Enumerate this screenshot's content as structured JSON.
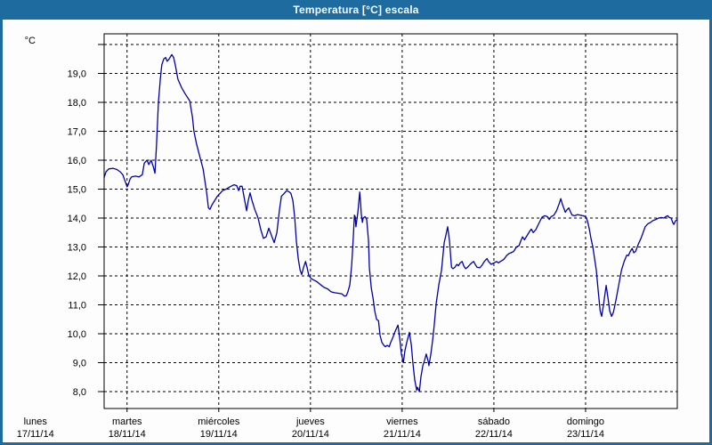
{
  "window": {
    "title": "Temperatura [°C] escala"
  },
  "colors": {
    "frame": "#1e6c9f",
    "title_text": "#ffffff",
    "line": "#0000aa",
    "grid": "#000000",
    "plot_bg": "#fdfdfd",
    "label_text": "#000000"
  },
  "chart_data": {
    "type": "line",
    "title": "Temperatura [°C] escala",
    "y_unit": "°C",
    "x_unit": "hours since lunes 17/11/14 00:00",
    "decimal_separator": ",",
    "grid": "dashed",
    "legend": "none",
    "y_ticks": [
      8,
      9,
      10,
      11,
      12,
      13,
      14,
      15,
      16,
      17,
      18,
      19
    ],
    "y_gridline_max": 20,
    "ylim": [
      7.4,
      20.4
    ],
    "xlim_hours": [
      18,
      168
    ],
    "x_days": [
      {
        "name": "lunes",
        "date": "17/11/14"
      },
      {
        "name": "martes",
        "date": "18/11/14"
      },
      {
        "name": "miércoles",
        "date": "19/11/14"
      },
      {
        "name": "jueves",
        "date": "20/11/14"
      },
      {
        "name": "viernes",
        "date": "21/11/14"
      },
      {
        "name": "sábado",
        "date": "22/11/14"
      },
      {
        "name": "domingo",
        "date": "23/11/14"
      }
    ],
    "series": [
      {
        "name": "Temperatura",
        "color": "#0000aa",
        "points": [
          [
            18,
            15.4
          ],
          [
            18.5,
            15.6
          ],
          [
            19.2,
            15.7
          ],
          [
            20.3,
            15.72
          ],
          [
            21.3,
            15.68
          ],
          [
            22.2,
            15.6
          ],
          [
            22.9,
            15.5
          ],
          [
            23.4,
            15.3
          ],
          [
            23.7,
            15.2
          ],
          [
            24,
            15.08
          ],
          [
            24.3,
            15.15
          ],
          [
            24.8,
            15.35
          ],
          [
            25.2,
            15.42
          ],
          [
            26.2,
            15.45
          ],
          [
            27.1,
            15.42
          ],
          [
            28,
            15.5
          ],
          [
            28.5,
            15.9
          ],
          [
            29.2,
            16.0
          ],
          [
            29.7,
            15.85
          ],
          [
            30.3,
            16.0
          ],
          [
            30.8,
            15.8
          ],
          [
            31.3,
            15.55
          ],
          [
            31.7,
            16.5
          ],
          [
            32.2,
            18.0
          ],
          [
            32.7,
            18.8
          ],
          [
            33.1,
            19.3
          ],
          [
            33.6,
            19.5
          ],
          [
            34.1,
            19.55
          ],
          [
            34.5,
            19.42
          ],
          [
            35,
            19.5
          ],
          [
            35.7,
            19.65
          ],
          [
            36.2,
            19.55
          ],
          [
            36.6,
            19.3
          ],
          [
            37.3,
            18.8
          ],
          [
            38.3,
            18.5
          ],
          [
            39.2,
            18.3
          ],
          [
            40.4,
            18.05
          ],
          [
            41.1,
            17.5
          ],
          [
            41.5,
            17.0
          ],
          [
            42.2,
            16.55
          ],
          [
            43.2,
            16.05
          ],
          [
            43.9,
            15.7
          ],
          [
            44.3,
            15.35
          ],
          [
            44.8,
            14.9
          ],
          [
            45.3,
            14.35
          ],
          [
            45.7,
            14.3
          ],
          [
            46.2,
            14.45
          ],
          [
            46.9,
            14.6
          ],
          [
            47.6,
            14.75
          ],
          [
            48.3,
            14.85
          ],
          [
            49,
            14.95
          ],
          [
            49.9,
            15.0
          ],
          [
            50.9,
            15.08
          ],
          [
            52,
            15.15
          ],
          [
            52.7,
            15.12
          ],
          [
            53.2,
            14.95
          ],
          [
            53.6,
            15.1
          ],
          [
            54.1,
            15.1
          ],
          [
            54.8,
            14.6
          ],
          [
            55.3,
            14.25
          ],
          [
            55.7,
            14.6
          ],
          [
            56.2,
            14.87
          ],
          [
            56.7,
            14.6
          ],
          [
            57.4,
            14.3
          ],
          [
            58.3,
            14.0
          ],
          [
            59,
            13.6
          ],
          [
            59.7,
            13.3
          ],
          [
            60.4,
            13.35
          ],
          [
            61.1,
            13.65
          ],
          [
            61.8,
            13.4
          ],
          [
            62.5,
            13.15
          ],
          [
            63.2,
            13.5
          ],
          [
            63.9,
            14.3
          ],
          [
            64.4,
            14.75
          ],
          [
            65.1,
            14.85
          ],
          [
            65.8,
            14.95
          ],
          [
            66.5,
            14.9
          ],
          [
            66.9,
            14.85
          ],
          [
            67.4,
            14.6
          ],
          [
            67.9,
            14.0
          ],
          [
            68.3,
            13.2
          ],
          [
            68.8,
            12.6
          ],
          [
            69.3,
            12.2
          ],
          [
            69.7,
            12.05
          ],
          [
            70.2,
            12.3
          ],
          [
            70.7,
            12.5
          ],
          [
            71.1,
            12.3
          ],
          [
            71.6,
            12.0
          ],
          [
            72.3,
            11.9
          ],
          [
            73,
            11.85
          ],
          [
            73.7,
            11.8
          ],
          [
            74.6,
            11.7
          ],
          [
            75.6,
            11.6
          ],
          [
            76.5,
            11.55
          ],
          [
            77.4,
            11.45
          ],
          [
            78.3,
            11.42
          ],
          [
            79.3,
            11.4
          ],
          [
            80.2,
            11.38
          ],
          [
            80.9,
            11.3
          ],
          [
            81.4,
            11.32
          ],
          [
            81.8,
            11.45
          ],
          [
            82.3,
            11.7
          ],
          [
            82.8,
            12.4
          ],
          [
            83.2,
            13.3
          ],
          [
            83.5,
            14.1
          ],
          [
            83.7,
            14.05
          ],
          [
            83.9,
            13.7
          ],
          [
            84.4,
            14.2
          ],
          [
            84.9,
            14.9
          ],
          [
            85.1,
            14.55
          ],
          [
            85.3,
            14.15
          ],
          [
            85.6,
            13.85
          ],
          [
            85.8,
            14.0
          ],
          [
            86.3,
            14.05
          ],
          [
            86.7,
            13.95
          ],
          [
            87.2,
            13.2
          ],
          [
            87.4,
            12.3
          ],
          [
            87.9,
            11.6
          ],
          [
            88.4,
            11.2
          ],
          [
            88.8,
            10.8
          ],
          [
            89.3,
            10.5
          ],
          [
            89.8,
            10.45
          ],
          [
            90.2,
            9.95
          ],
          [
            90.7,
            9.7
          ],
          [
            91.2,
            9.6
          ],
          [
            91.6,
            9.55
          ],
          [
            92.1,
            9.6
          ],
          [
            92.6,
            9.55
          ],
          [
            93,
            9.7
          ],
          [
            93.5,
            9.85
          ],
          [
            94.2,
            10.1
          ],
          [
            94.9,
            10.3
          ],
          [
            95.4,
            9.8
          ],
          [
            95.8,
            9.3
          ],
          [
            96.3,
            9.0
          ],
          [
            96.7,
            9.4
          ],
          [
            97.2,
            9.7
          ],
          [
            97.9,
            10.05
          ],
          [
            98.4,
            9.6
          ],
          [
            98.8,
            9.0
          ],
          [
            99.3,
            8.4
          ],
          [
            99.8,
            8.05
          ],
          [
            100,
            8.15
          ],
          [
            100.5,
            8.0
          ],
          [
            100.9,
            8.5
          ],
          [
            101.4,
            8.9
          ],
          [
            101.9,
            9.1
          ],
          [
            102.3,
            9.3
          ],
          [
            102.8,
            9.05
          ],
          [
            103,
            8.9
          ],
          [
            103.5,
            9.3
          ],
          [
            104,
            9.8
          ],
          [
            104.4,
            10.3
          ],
          [
            104.9,
            11.05
          ],
          [
            105.6,
            11.7
          ],
          [
            106.3,
            12.2
          ],
          [
            107,
            13.15
          ],
          [
            107.5,
            13.45
          ],
          [
            107.9,
            13.7
          ],
          [
            108.4,
            13.2
          ],
          [
            108.9,
            12.3
          ],
          [
            109.3,
            12.25
          ],
          [
            109.8,
            12.3
          ],
          [
            110.3,
            12.4
          ],
          [
            110.7,
            12.35
          ],
          [
            111.2,
            12.45
          ],
          [
            111.7,
            12.5
          ],
          [
            112.1,
            12.35
          ],
          [
            112.6,
            12.25
          ],
          [
            113.1,
            12.3
          ],
          [
            113.8,
            12.4
          ],
          [
            114.2,
            12.45
          ],
          [
            114.7,
            12.5
          ],
          [
            115.1,
            12.4
          ],
          [
            115.6,
            12.3
          ],
          [
            116.3,
            12.28
          ],
          [
            116.8,
            12.35
          ],
          [
            117.5,
            12.5
          ],
          [
            118.2,
            12.6
          ],
          [
            118.6,
            12.5
          ],
          [
            119.3,
            12.4
          ],
          [
            120,
            12.45
          ],
          [
            120.7,
            12.5
          ],
          [
            121.2,
            12.45
          ],
          [
            121.7,
            12.5
          ],
          [
            122.4,
            12.55
          ],
          [
            122.8,
            12.6
          ],
          [
            123.3,
            12.7
          ],
          [
            124,
            12.78
          ],
          [
            124.5,
            12.8
          ],
          [
            125.2,
            12.85
          ],
          [
            125.9,
            13.0
          ],
          [
            126.6,
            13.05
          ],
          [
            127,
            13.2
          ],
          [
            127.5,
            13.35
          ],
          [
            128,
            13.25
          ],
          [
            128.7,
            13.4
          ],
          [
            129.4,
            13.55
          ],
          [
            129.8,
            13.62
          ],
          [
            130.3,
            13.5
          ],
          [
            131,
            13.6
          ],
          [
            131.7,
            13.8
          ],
          [
            132.6,
            14.03
          ],
          [
            133.3,
            14.08
          ],
          [
            134,
            14.05
          ],
          [
            134.5,
            13.95
          ],
          [
            135,
            14.05
          ],
          [
            135.7,
            14.1
          ],
          [
            136.4,
            14.25
          ],
          [
            137.1,
            14.5
          ],
          [
            137.5,
            14.67
          ],
          [
            138,
            14.45
          ],
          [
            138.7,
            14.2
          ],
          [
            139.1,
            14.28
          ],
          [
            139.6,
            14.35
          ],
          [
            140.1,
            14.2
          ],
          [
            140.5,
            14.1
          ],
          [
            141.2,
            14.08
          ],
          [
            141.9,
            14.12
          ],
          [
            142.6,
            14.1
          ],
          [
            143.3,
            14.08
          ],
          [
            144,
            14.05
          ],
          [
            144.5,
            13.9
          ],
          [
            145,
            13.6
          ],
          [
            145.4,
            13.3
          ],
          [
            145.9,
            13.0
          ],
          [
            146.4,
            12.55
          ],
          [
            146.8,
            12.2
          ],
          [
            147.3,
            11.5
          ],
          [
            147.8,
            10.8
          ],
          [
            148.2,
            10.6
          ],
          [
            148.7,
            11.0
          ],
          [
            149.2,
            11.5
          ],
          [
            149.4,
            11.67
          ],
          [
            149.9,
            11.2
          ],
          [
            150.3,
            10.8
          ],
          [
            150.8,
            10.6
          ],
          [
            151.3,
            10.75
          ],
          [
            152,
            11.2
          ],
          [
            152.7,
            11.7
          ],
          [
            153.4,
            12.2
          ],
          [
            154.1,
            12.5
          ],
          [
            154.8,
            12.72
          ],
          [
            155.2,
            12.7
          ],
          [
            155.7,
            12.85
          ],
          [
            156.2,
            12.95
          ],
          [
            156.6,
            12.8
          ],
          [
            157.1,
            12.85
          ],
          [
            157.8,
            13.1
          ],
          [
            158.5,
            13.3
          ],
          [
            159.2,
            13.55
          ],
          [
            159.6,
            13.7
          ],
          [
            160.3,
            13.8
          ],
          [
            161,
            13.85
          ],
          [
            161.7,
            13.92
          ],
          [
            162.4,
            13.95
          ],
          [
            163.1,
            14.0
          ],
          [
            163.8,
            14.02
          ],
          [
            164.5,
            14.0
          ],
          [
            165,
            14.05
          ],
          [
            165.5,
            14.08
          ],
          [
            165.9,
            14.02
          ],
          [
            166.4,
            14.0
          ],
          [
            166.8,
            13.85
          ],
          [
            167.1,
            13.78
          ],
          [
            167.5,
            13.9
          ],
          [
            168,
            13.95
          ]
        ]
      }
    ]
  }
}
